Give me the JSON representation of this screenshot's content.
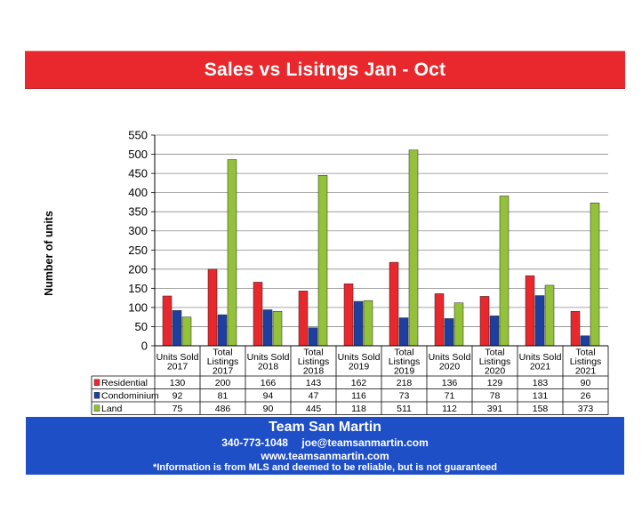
{
  "header": {
    "title": "Sales vs Lisitngs Jan - Oct"
  },
  "chart_data": {
    "type": "bar",
    "title": "Sales vs Lisitngs Jan - Oct",
    "ylabel": "Number of units",
    "xlabel": "",
    "ylim": [
      0,
      550
    ],
    "yticks": [
      0,
      50,
      100,
      150,
      200,
      250,
      300,
      350,
      400,
      450,
      500,
      550
    ],
    "grid": true,
    "legend_position": "table-left",
    "categories": [
      [
        "Units Sold",
        "2017"
      ],
      [
        "Total",
        "Listings",
        "2017"
      ],
      [
        "Units Sold",
        "2018"
      ],
      [
        "Total",
        "Listings",
        "2018"
      ],
      [
        "Units Sold",
        "2019"
      ],
      [
        "Total",
        "Listings",
        "2019"
      ],
      [
        "Units Sold",
        "2020"
      ],
      [
        "Total",
        "Listings",
        "2020"
      ],
      [
        "Units Sold",
        "2021"
      ],
      [
        "Total",
        "Listings",
        "2021"
      ]
    ],
    "series": [
      {
        "name": "Residential",
        "color": "#e8282c",
        "values": [
          130,
          200,
          166,
          143,
          162,
          218,
          136,
          129,
          183,
          90
        ]
      },
      {
        "name": "Condominium",
        "color": "#1f3f9f",
        "values": [
          92,
          81,
          94,
          47,
          116,
          73,
          71,
          78,
          131,
          26
        ]
      },
      {
        "name": "Land",
        "color": "#94c13a",
        "values": [
          75,
          486,
          90,
          445,
          118,
          511,
          112,
          391,
          158,
          373
        ]
      }
    ]
  },
  "footer": {
    "title": "Team San Martin",
    "phone": "340-773-1048",
    "email": "joe@teamsanmartin.com",
    "website": "www.teamsanmartin.com",
    "disclaimer": "*Information is from MLS and deemed to be reliable, but is not guaranteed"
  }
}
